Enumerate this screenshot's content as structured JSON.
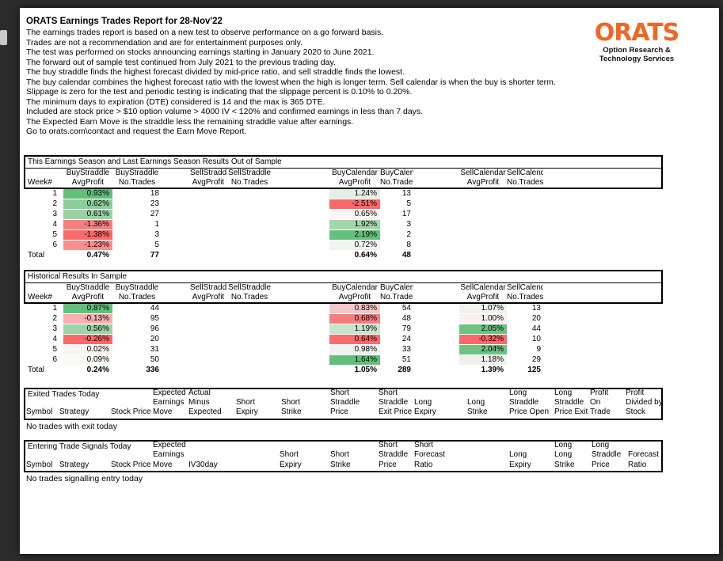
{
  "page": {
    "title": "ORATS Earnings Trades Report for 28-Nov'22",
    "intro_lines": [
      "The earnings trades report is based on a new test to observe performance on a go forward basis.",
      "Trades are not a recommendation and are for entertainment purposes only.",
      "The test was performed on stocks announcing earnings starting in January 2020 to June 2021.",
      "The forward out of sample test continued from July 2021 to the previous trading day.",
      "The buy straddle finds the highest forecast divided by mid-price ratio, and sell straddle finds the lowest.",
      "The buy calendar combines the highest forecast ratio with the lowest when the high is longer term. Sell calendar is when the buy is shorter term.",
      "Slippage is zero for the test and periodic testing is indicating that the slippage percent is 0.10% to 0.20%.",
      "The minimum days to expiration (DTE) considered is 14 and the max is 365 DTE.",
      "Included are stock price > $10 option volume > 4000 IV < 120% and confirmed earnings in less than 7 days.",
      "The Expected Earn Move is the straddle less the remaining straddle value after earnings.",
      "Go to orats.com\\contact and request the Earn Move Report."
    ]
  },
  "logo": {
    "name": "ORATS",
    "subtitle_line1": "Option Research &",
    "subtitle_line2": "Technology Services",
    "accent_color": "#F26522"
  },
  "season_header": {
    "week_label": "Week#",
    "total_label": "Total",
    "groups": [
      "BuyStraddle",
      "BuyStraddle",
      "SellStraddle",
      "SellStraddle",
      "BuyCalendar",
      "BuyCalendar",
      "SellCalendar",
      "SellCalendar"
    ],
    "subs": [
      "AvgProfit",
      "No.Trades",
      "AvgProfit",
      "No.Trades",
      "AvgProfit",
      "No.Trades",
      "AvgProfit",
      "No.Trades"
    ]
  },
  "tables": {
    "out_of_sample": {
      "title": "This Earnings Season and Last Earnings Season Results Out of Sample",
      "rows": [
        {
          "week": "1",
          "bs_avg": "0.93%",
          "bs_bg": "#63BE7B",
          "bs_n": "18",
          "ss_avg": "",
          "ss_n": "",
          "bc_avg": "1.24%",
          "bc_bg": "#E4EFE3",
          "bc_n": "13",
          "sc_avg": "",
          "sc_bg": "",
          "sc_n": ""
        },
        {
          "week": "2",
          "bs_avg": "0.62%",
          "bs_bg": "#8CCD99",
          "bs_n": "23",
          "ss_avg": "",
          "ss_n": "",
          "bc_avg": "-2.51%",
          "bc_bg": "#F8696B",
          "bc_n": "5",
          "sc_avg": "",
          "sc_bg": "",
          "sc_n": ""
        },
        {
          "week": "3",
          "bs_avg": "0.61%",
          "bs_bg": "#98D2A3",
          "bs_n": "27",
          "ss_avg": "",
          "ss_n": "",
          "bc_avg": "0.65%",
          "bc_bg": "#FBF5F4",
          "bc_n": "17",
          "sc_avg": "",
          "sc_bg": "",
          "sc_n": ""
        },
        {
          "week": "4",
          "bs_avg": "-1.36%",
          "bs_bg": "#F5807F",
          "bs_n": "1",
          "ss_avg": "",
          "ss_n": "",
          "bc_avg": "1.92%",
          "bc_bg": "#A2D6AB",
          "bc_n": "3",
          "sc_avg": "",
          "sc_bg": "",
          "sc_n": ""
        },
        {
          "week": "5",
          "bs_avg": "-1.38%",
          "bs_bg": "#F8696B",
          "bs_n": "3",
          "ss_avg": "",
          "ss_n": "",
          "bc_avg": "2.19%",
          "bc_bg": "#67BF7E",
          "bc_n": "2",
          "sc_avg": "",
          "sc_bg": "",
          "sc_n": ""
        },
        {
          "week": "6",
          "bs_avg": "-1.23%",
          "bs_bg": "#F98F8E",
          "bs_n": "5",
          "ss_avg": "",
          "ss_n": "",
          "bc_avg": "0.72%",
          "bc_bg": "#F1F4EF",
          "bc_n": "8",
          "sc_avg": "",
          "sc_bg": "",
          "sc_n": ""
        }
      ],
      "total": {
        "bs_avg": "0.47%",
        "bs_n": "77",
        "ss_avg": "",
        "ss_n": "",
        "bc_avg": "0.64%",
        "bc_n": "48",
        "sc_avg": "",
        "sc_n": ""
      }
    },
    "in_sample": {
      "title": "Historical Results In Sample",
      "rows": [
        {
          "week": "1",
          "bs_avg": "0.87%",
          "bs_bg": "#63BE7B",
          "bs_n": "44",
          "ss_avg": "",
          "ss_n": "",
          "bc_avg": "0.83%",
          "bc_bg": "#F6C7C8",
          "bc_n": "54",
          "sc_avg": "1.07%",
          "sc_bg": "#EFF2EE",
          "sc_n": "13"
        },
        {
          "week": "2",
          "bs_avg": "-0.13%",
          "bs_bg": "#F8AEB2",
          "bs_n": "95",
          "ss_avg": "",
          "ss_n": "",
          "bc_avg": "0.68%",
          "bc_bg": "#F47D80",
          "bc_n": "48",
          "sc_avg": "1.00%",
          "sc_bg": "#F8F1EF",
          "sc_n": "20"
        },
        {
          "week": "3",
          "bs_avg": "0.56%",
          "bs_bg": "#9DD4A7",
          "bs_n": "96",
          "ss_avg": "",
          "ss_n": "",
          "bc_avg": "1.19%",
          "bc_bg": "#C7E5CC",
          "bc_n": "79",
          "sc_avg": "2.05%",
          "sc_bg": "#6DC284",
          "sc_n": "44"
        },
        {
          "week": "4",
          "bs_avg": "-0.26%",
          "bs_bg": "#F8696B",
          "bs_n": "20",
          "ss_avg": "",
          "ss_n": "",
          "bc_avg": "0.64%",
          "bc_bg": "#F76D6F",
          "bc_n": "24",
          "sc_avg": "-0.32%",
          "sc_bg": "#F8696B",
          "sc_n": "10"
        },
        {
          "week": "5",
          "bs_avg": "0.02%",
          "bs_bg": "#FBF3F2",
          "bs_n": "31",
          "ss_avg": "",
          "ss_n": "",
          "bc_avg": "0.98%",
          "bc_bg": "#EFF2EE",
          "bc_n": "33",
          "sc_avg": "2.04%",
          "sc_bg": "#6DC284",
          "sc_n": "9"
        },
        {
          "week": "6",
          "bs_avg": "0.09%",
          "bs_bg": "#F7F9F5",
          "bs_n": "50",
          "ss_avg": "",
          "ss_n": "",
          "bc_avg": "1.64%",
          "bc_bg": "#63BE7B",
          "bc_n": "51",
          "sc_avg": "1.18%",
          "sc_bg": "#EEF1EC",
          "sc_n": "29"
        }
      ],
      "total": {
        "bs_avg": "0.24%",
        "bs_n": "336",
        "ss_avg": "",
        "ss_n": "",
        "bc_avg": "1.05%",
        "bc_n": "289",
        "sc_avg": "1.39%",
        "sc_n": "125"
      }
    },
    "exited": {
      "title": "Exited Trades Today",
      "empty_message": "No trades with exit today",
      "columns": [
        [
          "Symbol"
        ],
        [
          "Strategy"
        ],
        [
          "Stock Price"
        ],
        [
          "Expected",
          "Earnings",
          "Move"
        ],
        [
          "Actual",
          "Minus",
          "Expected"
        ],
        [
          "Short",
          "Expiry"
        ],
        [
          "Short",
          "Strike"
        ],
        [
          "Short",
          "Straddle",
          "Price"
        ],
        [
          "Short",
          "Straddle",
          "Exit Price"
        ],
        [
          "Long",
          "Expiry"
        ],
        [
          "Long",
          "Strike"
        ],
        [
          "Long",
          "Straddle",
          "Price Open"
        ],
        [
          "Long",
          "Straddle",
          "Price Exit"
        ],
        [
          "Profit",
          "On",
          "Trade"
        ],
        [
          "Profit",
          "Divided by",
          "Stock"
        ]
      ]
    },
    "entering": {
      "title": "Entering Trade Signals Today",
      "empty_message": "No trades signalling entry today",
      "columns": [
        [
          "Symbol"
        ],
        [
          "Strategy"
        ],
        [
          "Stock Price"
        ],
        [
          "Expected",
          "Earnings",
          "Move"
        ],
        [
          "IV30day"
        ],
        [
          "Short",
          "Expiry"
        ],
        [
          "Short",
          "Strike"
        ],
        [
          "Short",
          "Straddle",
          "Price"
        ],
        [
          "Short",
          "Forecast",
          "Ratio"
        ],
        [
          "Long",
          "Expiry"
        ],
        [
          "Long",
          "Long",
          "Strike"
        ],
        [
          "Long",
          "Straddle",
          "Price"
        ],
        [
          "Forecast",
          "Ratio"
        ]
      ]
    }
  }
}
